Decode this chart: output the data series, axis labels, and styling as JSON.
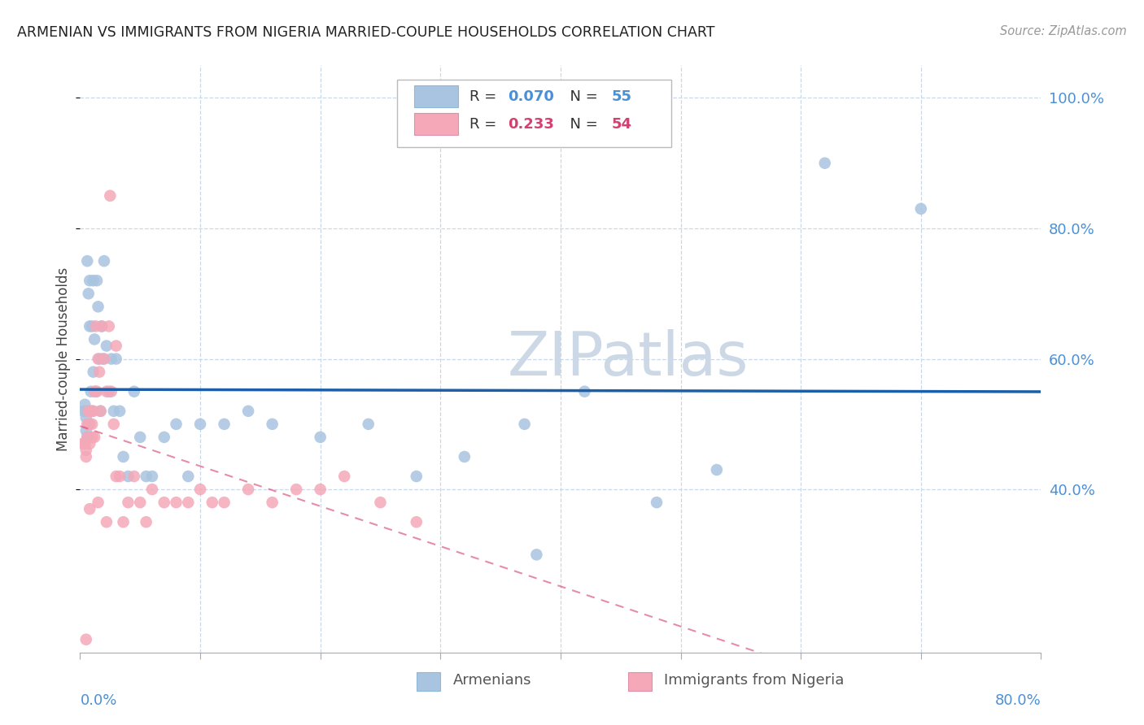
{
  "title": "ARMENIAN VS IMMIGRANTS FROM NIGERIA MARRIED-COUPLE HOUSEHOLDS CORRELATION CHART",
  "source": "Source: ZipAtlas.com",
  "ylabel": "Married-couple Households",
  "xlabel_armenians": "Armenians",
  "xlabel_nigeria": "Immigrants from Nigeria",
  "xlim": [
    0.0,
    0.8
  ],
  "ylim": [
    0.15,
    1.05
  ],
  "yticks": [
    0.4,
    0.6,
    0.8,
    1.0
  ],
  "ytick_labels": [
    "40.0%",
    "60.0%",
    "80.0%",
    "100.0%"
  ],
  "R_armenian": 0.07,
  "N_armenian": 55,
  "R_nigeria": 0.233,
  "N_nigeria": 54,
  "color_armenian": "#a8c4e0",
  "color_nigeria": "#f4a8b8",
  "line_color_armenian": "#1a5fa8",
  "line_color_nigeria": "#d44070",
  "watermark": "ZIPatlas",
  "watermark_color": "#ccd8e5",
  "arm_x": [
    0.003,
    0.004,
    0.005,
    0.005,
    0.005,
    0.006,
    0.006,
    0.007,
    0.007,
    0.008,
    0.008,
    0.009,
    0.01,
    0.01,
    0.011,
    0.011,
    0.012,
    0.013,
    0.014,
    0.015,
    0.016,
    0.017,
    0.018,
    0.019,
    0.02,
    0.022,
    0.024,
    0.026,
    0.028,
    0.03,
    0.033,
    0.036,
    0.04,
    0.045,
    0.05,
    0.055,
    0.06,
    0.07,
    0.08,
    0.09,
    0.1,
    0.12,
    0.14,
    0.16,
    0.2,
    0.24,
    0.28,
    0.32,
    0.37,
    0.42,
    0.48,
    0.53,
    0.62,
    0.7,
    0.38
  ],
  "arm_y": [
    0.52,
    0.53,
    0.51,
    0.49,
    0.52,
    0.75,
    0.48,
    0.7,
    0.5,
    0.65,
    0.72,
    0.55,
    0.52,
    0.65,
    0.58,
    0.72,
    0.63,
    0.55,
    0.72,
    0.68,
    0.6,
    0.52,
    0.65,
    0.6,
    0.75,
    0.62,
    0.55,
    0.6,
    0.52,
    0.6,
    0.52,
    0.45,
    0.42,
    0.55,
    0.48,
    0.42,
    0.42,
    0.48,
    0.5,
    0.42,
    0.5,
    0.5,
    0.52,
    0.5,
    0.48,
    0.5,
    0.42,
    0.45,
    0.5,
    0.55,
    0.38,
    0.43,
    0.9,
    0.83,
    0.3
  ],
  "nig_x": [
    0.002,
    0.003,
    0.004,
    0.005,
    0.005,
    0.006,
    0.006,
    0.007,
    0.008,
    0.008,
    0.009,
    0.01,
    0.01,
    0.011,
    0.012,
    0.012,
    0.013,
    0.014,
    0.015,
    0.016,
    0.017,
    0.018,
    0.02,
    0.022,
    0.024,
    0.026,
    0.028,
    0.03,
    0.033,
    0.036,
    0.04,
    0.045,
    0.05,
    0.055,
    0.06,
    0.07,
    0.08,
    0.09,
    0.1,
    0.11,
    0.12,
    0.14,
    0.16,
    0.18,
    0.2,
    0.22,
    0.25,
    0.28,
    0.03,
    0.025,
    0.022,
    0.015,
    0.008,
    0.005
  ],
  "nig_y": [
    0.47,
    0.47,
    0.47,
    0.46,
    0.45,
    0.48,
    0.5,
    0.52,
    0.47,
    0.5,
    0.52,
    0.5,
    0.48,
    0.52,
    0.55,
    0.48,
    0.65,
    0.55,
    0.6,
    0.58,
    0.52,
    0.65,
    0.6,
    0.55,
    0.65,
    0.55,
    0.5,
    0.42,
    0.42,
    0.35,
    0.38,
    0.42,
    0.38,
    0.35,
    0.4,
    0.38,
    0.38,
    0.38,
    0.4,
    0.38,
    0.38,
    0.4,
    0.38,
    0.4,
    0.4,
    0.42,
    0.38,
    0.35,
    0.62,
    0.85,
    0.35,
    0.38,
    0.37,
    0.17
  ]
}
